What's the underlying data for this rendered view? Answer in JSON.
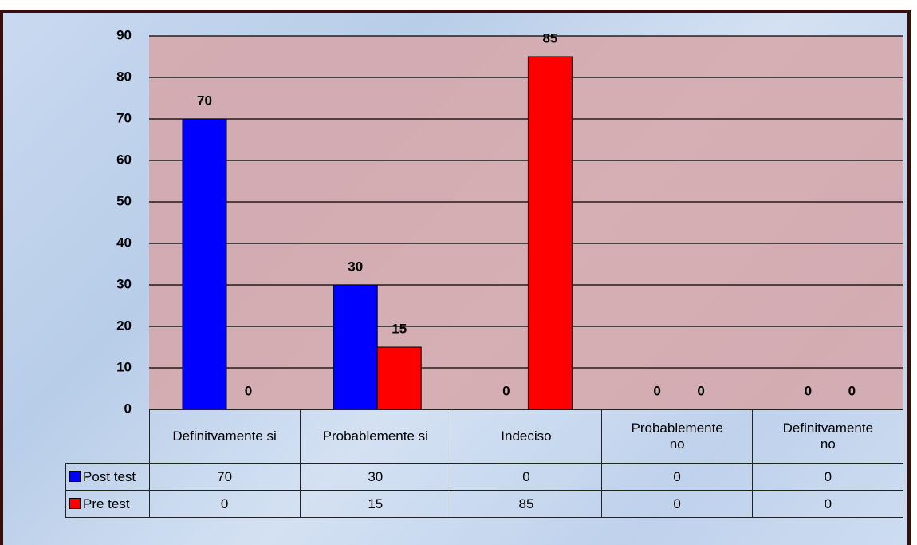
{
  "chart_data": {
    "type": "bar",
    "categories": [
      "Definitvamente si",
      "Probablemente si",
      "Indeciso",
      "Probablemente no",
      "Definitvamente no"
    ],
    "series": [
      {
        "name": "Post test",
        "color": "#0000ff",
        "values": [
          70,
          30,
          0,
          0,
          0
        ]
      },
      {
        "name": "Pre test",
        "color": "#ff0000",
        "values": [
          0,
          15,
          85,
          0,
          0
        ]
      }
    ],
    "ylim": [
      0,
      90
    ],
    "yticks": [
      0,
      10,
      20,
      30,
      40,
      50,
      60,
      70,
      80,
      90
    ],
    "grid": true
  }
}
